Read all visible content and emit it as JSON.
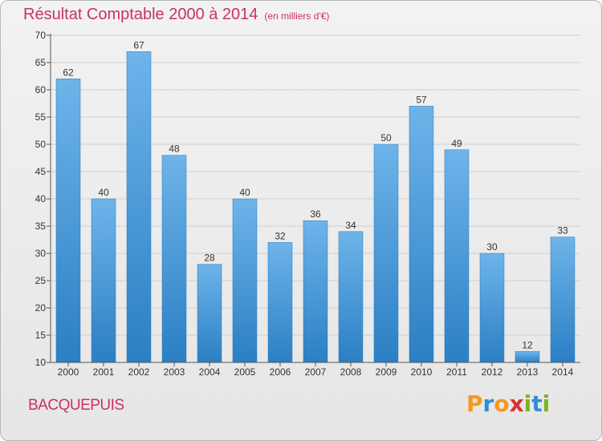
{
  "chart_data": {
    "type": "bar",
    "title": "Résultat Comptable 2000 à 2014",
    "unit_label": "(en milliers d'€)",
    "categories": [
      "2000",
      "2001",
      "2002",
      "2003",
      "2004",
      "2005",
      "2006",
      "2007",
      "2008",
      "2009",
      "2010",
      "2011",
      "2012",
      "2013",
      "2014"
    ],
    "values": [
      62,
      40,
      67,
      48,
      28,
      40,
      32,
      36,
      34,
      50,
      57,
      49,
      30,
      12,
      33
    ],
    "yticks": [
      10,
      15,
      20,
      25,
      30,
      35,
      40,
      45,
      50,
      55,
      60,
      65,
      70
    ],
    "ylim": [
      10,
      70
    ],
    "xlabel": "",
    "ylabel": "",
    "grid": true,
    "legend": "none",
    "bar_color_top": "#6eb4ea",
    "bar_color_bottom": "#2b7fc4"
  },
  "commune": "BACQUEPUIS",
  "logo": {
    "letters": [
      "P",
      "r",
      "o",
      "x",
      "i",
      "t",
      "i"
    ],
    "colors": [
      "#f39a1e",
      "#2f8fd3",
      "#f39a1e",
      "#d9302c",
      "#7ab51d",
      "#2f8fd3",
      "#7ab51d"
    ]
  },
  "colors": {
    "title": "#c8335e",
    "axis_text": "#333333",
    "grid": "#cfcfcf"
  }
}
